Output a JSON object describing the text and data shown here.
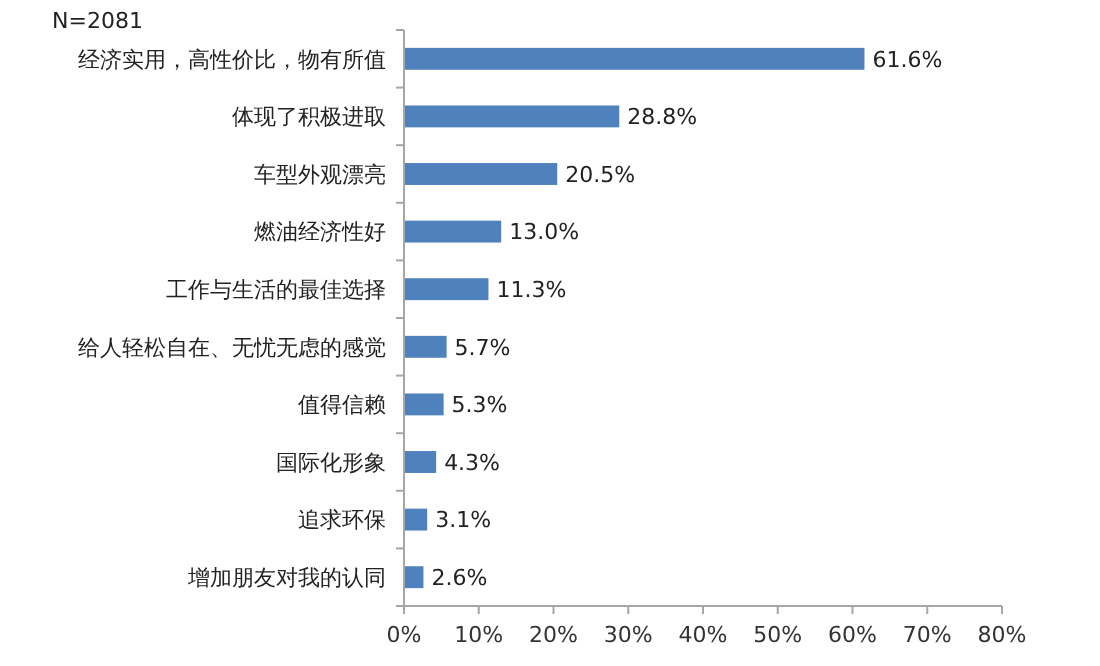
{
  "chart_data": {
    "type": "bar",
    "orientation": "horizontal",
    "categories": [
      "经济实用，高性价比，物有所值",
      "体现了积极进取",
      "车型外观漂亮",
      "燃油经济性好",
      "工作与生活的最佳选择",
      "给人轻松自在、无忧无虑的感觉",
      "值得信赖",
      "国际化形象",
      "追求环保",
      "增加朋友对我的认同"
    ],
    "values": [
      61.6,
      28.8,
      20.5,
      13.0,
      11.3,
      5.7,
      5.3,
      4.3,
      3.1,
      2.6
    ],
    "value_labels": [
      "61.6%",
      "28.8%",
      "20.5%",
      "13.0%",
      "11.3%",
      "5.7%",
      "5.3%",
      "4.3%",
      "3.1%",
      "2.6%"
    ],
    "color": "#4f81bd",
    "xlim": [
      0,
      80
    ],
    "xticks": [
      {
        "value": 0,
        "label": "0%"
      },
      {
        "value": 10,
        "label": "10%"
      },
      {
        "value": 20,
        "label": "20%"
      },
      {
        "value": 30,
        "label": "30%"
      },
      {
        "value": 40,
        "label": "40%"
      },
      {
        "value": 50,
        "label": "50%"
      },
      {
        "value": 60,
        "label": "60%"
      },
      {
        "value": 70,
        "label": "70%"
      },
      {
        "value": 80,
        "label": "80%"
      }
    ],
    "annotations": [
      "N=2081"
    ]
  }
}
